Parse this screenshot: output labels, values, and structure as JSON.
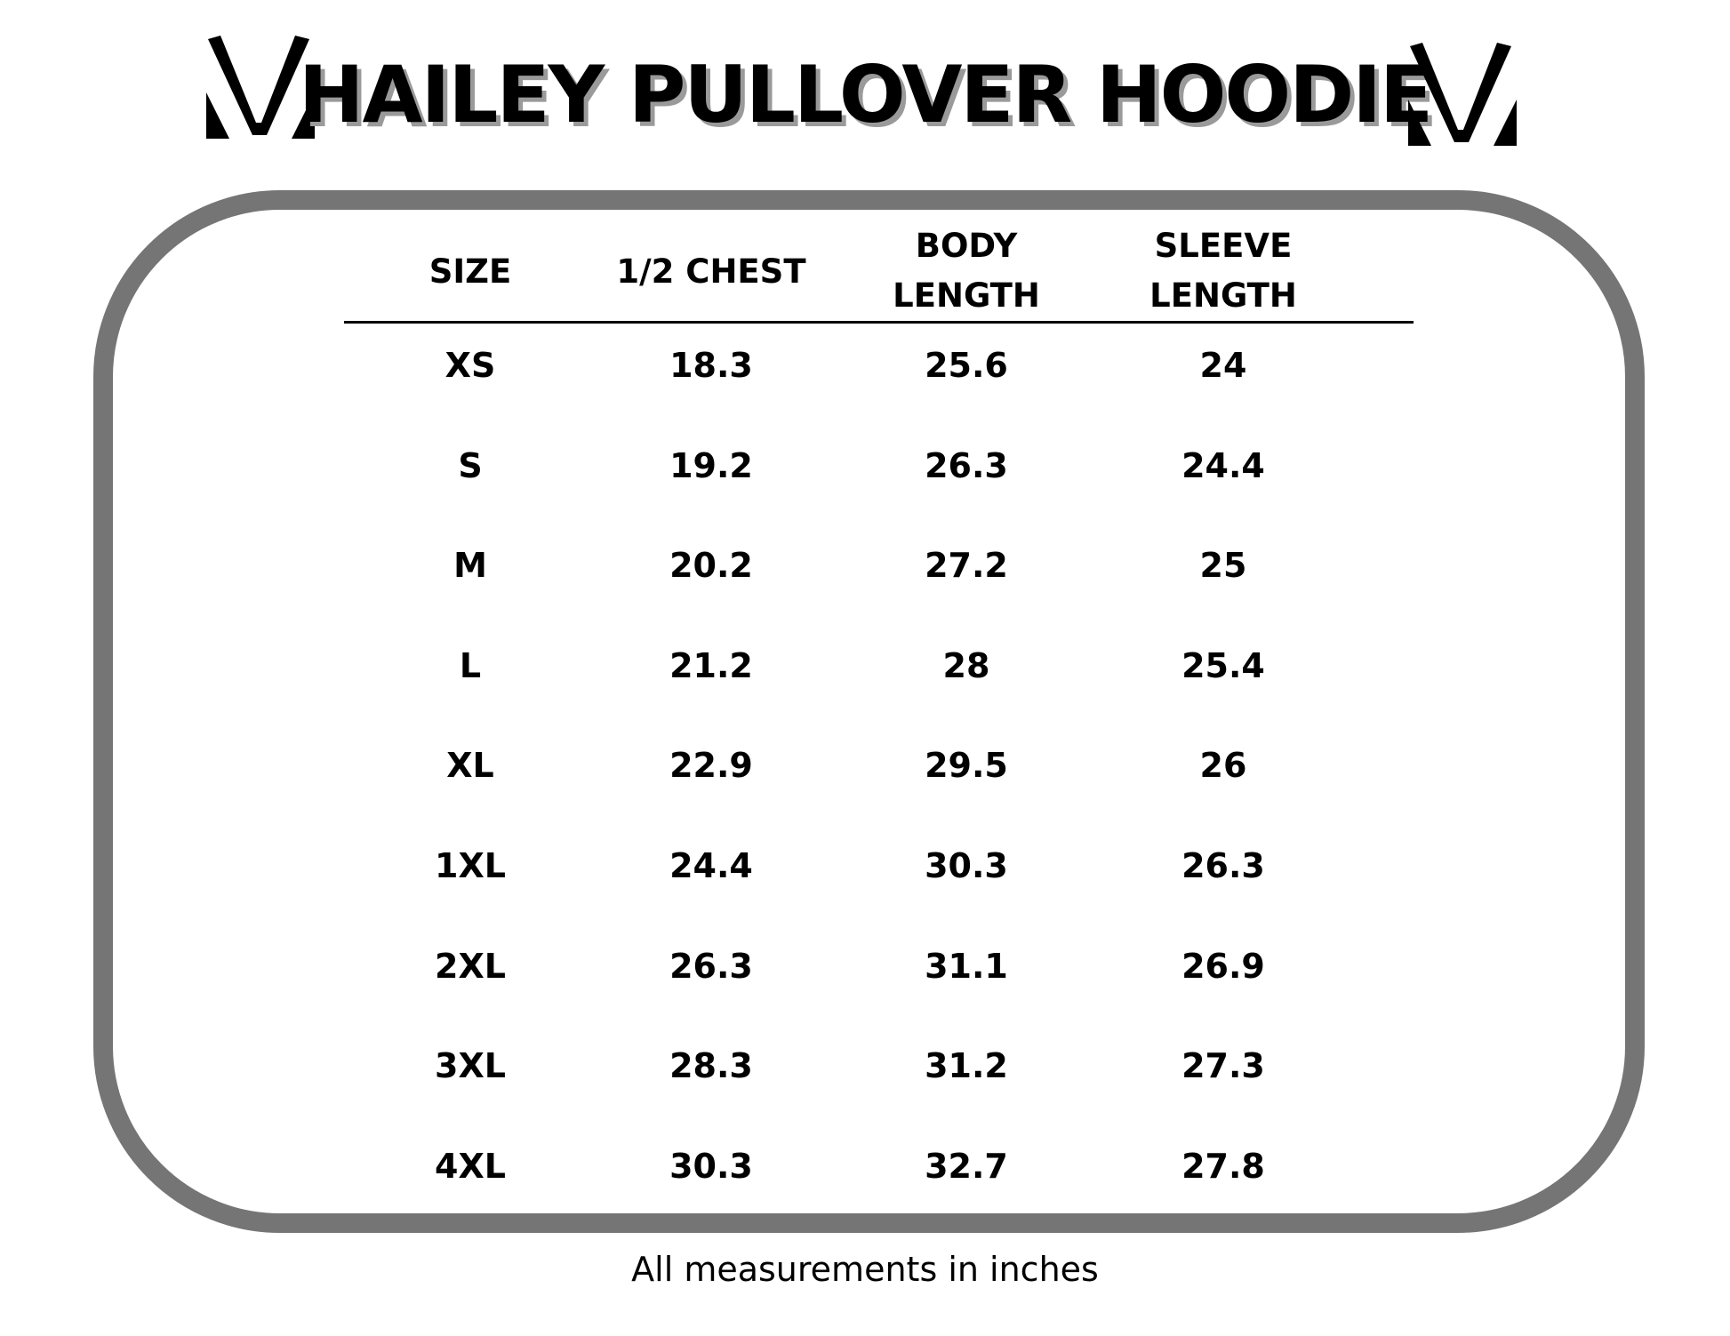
{
  "title": "HAILEY PULLOVER HOODIE",
  "logo_icon": "v-mark-logo",
  "table": {
    "headers": [
      [
        "SIZE"
      ],
      [
        "1/2 CHEST"
      ],
      [
        "BODY",
        "LENGTH"
      ],
      [
        "SLEEVE",
        "LENGTH"
      ]
    ],
    "rows": [
      [
        "XS",
        "18.3",
        "25.6",
        "24"
      ],
      [
        "S",
        "19.2",
        "26.3",
        "24.4"
      ],
      [
        "M",
        "20.2",
        "27.2",
        "25"
      ],
      [
        "L",
        "21.2",
        "28",
        "25.4"
      ],
      [
        "XL",
        "22.9",
        "29.5",
        "26"
      ],
      [
        "1XL",
        "24.4",
        "30.3",
        "26.3"
      ],
      [
        "2XL",
        "26.3",
        "31.1",
        "26.9"
      ],
      [
        "3XL",
        "28.3",
        "31.2",
        "27.3"
      ],
      [
        "4XL",
        "30.3",
        "32.7",
        "27.8"
      ]
    ]
  },
  "footer": "All measurements in inches",
  "colors": {
    "border": "#757575",
    "shadow": "#9a9a9a"
  }
}
